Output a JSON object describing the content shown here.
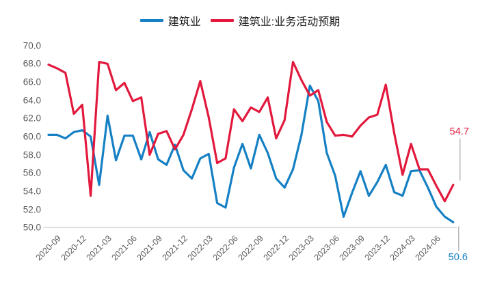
{
  "legend": [
    {
      "label": "建筑业",
      "color": "#1580c4"
    },
    {
      "label": "建筑业:业务活动预期",
      "color": "#e2193c"
    }
  ],
  "colors": {
    "blue": "#1580c4",
    "red": "#e2193c",
    "axis_text": "#595959",
    "baseline": "#d9d9d9",
    "leader_line": "#a8a8a8"
  },
  "end_labels": [
    {
      "text": "54.7",
      "series": "建筑业:业务活动预期",
      "color": "#e2193c"
    },
    {
      "text": "50.6",
      "series": "建筑业",
      "color": "#1580c4"
    }
  ],
  "chart_data": {
    "type": "line",
    "title": "",
    "xlabel": "",
    "ylabel": "",
    "ylim": [
      50.0,
      70.0
    ],
    "y_tick_step": 2.0,
    "grid": false,
    "legend_position": "top-center",
    "y_tick_labels": [
      "70.0",
      "68.0",
      "66.0",
      "64.0",
      "62.0",
      "60.0",
      "58.0",
      "56.0",
      "54.0",
      "52.0",
      "50.0"
    ],
    "x_tick_labels": [
      "2020-09",
      "2020-12",
      "2021-03",
      "2021-06",
      "2021-09",
      "2021-12",
      "2022-03",
      "2022-06",
      "2022-09",
      "2022-12",
      "2023-03",
      "2023-06",
      "2023-09",
      "2023-12",
      "2024-03",
      "2024-06"
    ],
    "x_tick_indices": [
      1,
      4,
      7,
      10,
      13,
      16,
      19,
      22,
      25,
      28,
      31,
      34,
      37,
      40,
      43,
      46
    ],
    "categories": [
      "2020-08",
      "2020-09",
      "2020-10",
      "2020-11",
      "2020-12",
      "2021-01",
      "2021-02",
      "2021-03",
      "2021-04",
      "2021-05",
      "2021-06",
      "2021-07",
      "2021-08",
      "2021-09",
      "2021-10",
      "2021-11",
      "2021-12",
      "2022-01",
      "2022-02",
      "2022-03",
      "2022-04",
      "2022-05",
      "2022-06",
      "2022-07",
      "2022-08",
      "2022-09",
      "2022-10",
      "2022-11",
      "2022-12",
      "2023-01",
      "2023-02",
      "2023-03",
      "2023-04",
      "2023-05",
      "2023-06",
      "2023-07",
      "2023-08",
      "2023-09",
      "2023-10",
      "2023-11",
      "2023-12",
      "2024-01",
      "2024-02",
      "2024-03",
      "2024-04",
      "2024-05",
      "2024-06",
      "2024-07",
      "2024-08"
    ],
    "series": [
      {
        "name": "建筑业",
        "color": "#1580c4",
        "values": [
          60.2,
          60.2,
          59.8,
          60.5,
          60.7,
          60.0,
          54.7,
          62.3,
          57.4,
          60.1,
          60.1,
          57.5,
          60.5,
          57.5,
          56.9,
          59.1,
          56.3,
          55.4,
          57.6,
          58.1,
          52.7,
          52.2,
          56.6,
          59.2,
          56.5,
          60.2,
          58.2,
          55.4,
          54.4,
          56.4,
          60.2,
          65.6,
          63.9,
          58.2,
          55.7,
          51.2,
          53.8,
          56.2,
          53.5,
          55.0,
          56.9,
          53.9,
          53.5,
          56.2,
          56.3,
          54.4,
          52.3,
          51.2,
          50.6
        ]
      },
      {
        "name": "建筑业:业务活动预期",
        "color": "#e2193c",
        "values": [
          67.9,
          67.5,
          67.0,
          62.5,
          63.5,
          53.5,
          68.2,
          68.0,
          65.1,
          65.9,
          63.9,
          64.3,
          58.0,
          60.3,
          60.6,
          58.6,
          60.2,
          63.0,
          66.1,
          62.1,
          57.1,
          57.6,
          63.0,
          61.7,
          63.2,
          62.7,
          64.3,
          59.8,
          61.8,
          68.2,
          66.2,
          64.5,
          65.1,
          61.6,
          60.1,
          60.2,
          60.0,
          61.2,
          62.1,
          62.4,
          65.7,
          60.4,
          55.8,
          59.2,
          56.4,
          56.4,
          54.6,
          52.9,
          54.7
        ]
      }
    ]
  }
}
